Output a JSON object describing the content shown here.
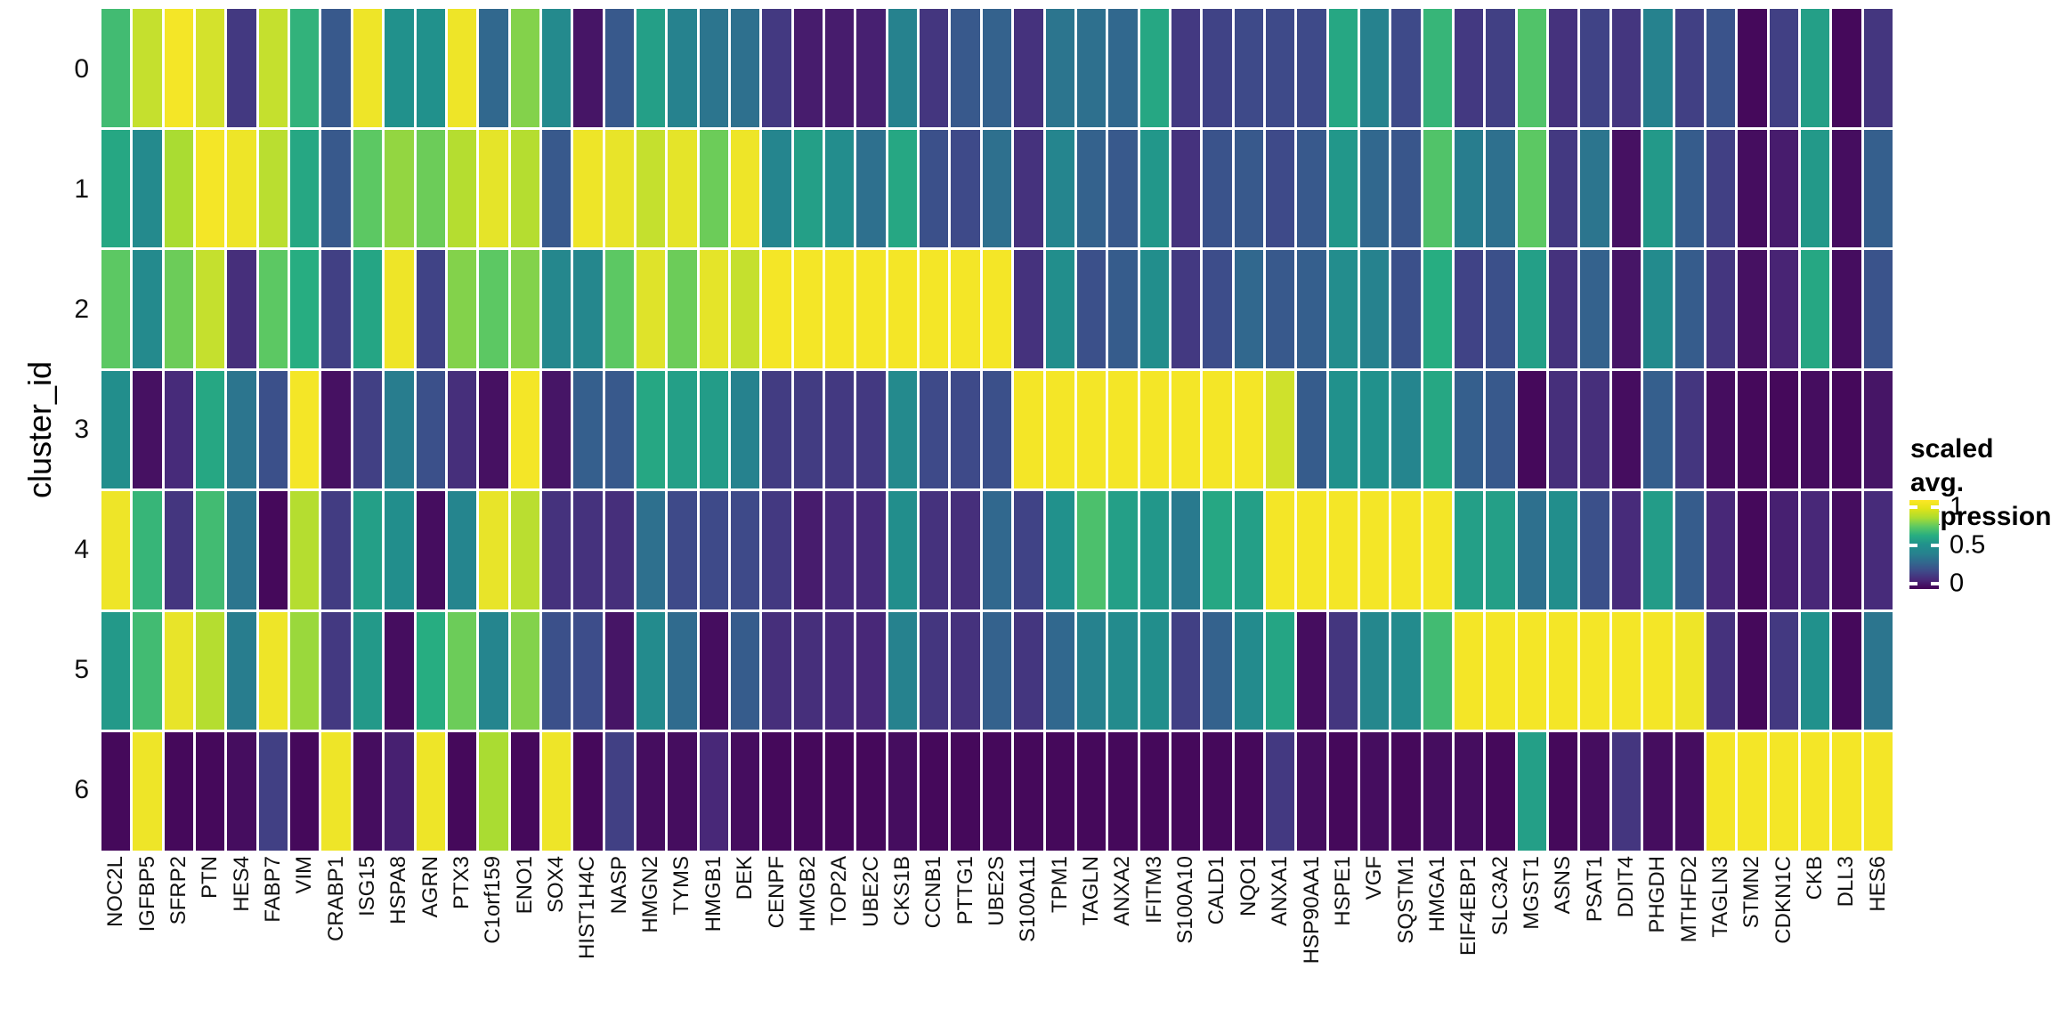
{
  "figure": {
    "y_axis_title": "cluster_id",
    "row_labels": [
      "0",
      "1",
      "2",
      "3",
      "4",
      "5",
      "6"
    ],
    "legend": {
      "title_line1": "scaled avg.",
      "title_line2": "expression",
      "tick_labels": [
        "1",
        "0.5",
        "0"
      ],
      "tick_positions_pct": [
        8,
        51,
        94
      ]
    },
    "colors": {
      "background": "#ffffff",
      "grid_gap": "#ffffff",
      "viridis_min": "#440154",
      "viridis_mid": "#21918c",
      "viridis_max": "#fde725"
    }
  },
  "chart_data": {
    "type": "heatmap",
    "title": "",
    "xlabel": "",
    "ylabel": "cluster_id",
    "legend_title": "scaled avg. expression",
    "colormap": "viridis",
    "value_range": [
      0,
      1
    ],
    "legend_ticks": [
      0,
      0.5,
      1
    ],
    "categories": [
      "NOC2L",
      "IGFBP5",
      "SFRP2",
      "PTN",
      "HES4",
      "FABP7",
      "VIM",
      "CRABP1",
      "ISG15",
      "HSPA8",
      "AGRN",
      "PTX3",
      "C1orf159",
      "ENO1",
      "SOX4",
      "HIST1H4C",
      "NASP",
      "HMGN2",
      "TYMS",
      "HMGB1",
      "DEK",
      "CENPF",
      "HMGB2",
      "TOP2A",
      "UBE2C",
      "CKS1B",
      "CCNB1",
      "PTTG1",
      "UBE2S",
      "S100A11",
      "TPM1",
      "TAGLN",
      "ANXA2",
      "IFITM3",
      "S100A10",
      "CALD1",
      "NQO1",
      "ANXA1",
      "HSP90AA1",
      "HSPE1",
      "VGF",
      "SQSTM1",
      "HMGA1",
      "EIF4EBP1",
      "SLC3A2",
      "MGST1",
      "ASNS",
      "PSAT1",
      "DDIT4",
      "PHGDH",
      "MTHFD2",
      "TAGLN3",
      "STMN2",
      "CDKN1C",
      "CKB",
      "DLL3",
      "HES6"
    ],
    "series": [
      {
        "name": "0",
        "values": [
          0.65,
          0.85,
          0.97,
          0.88,
          0.15,
          0.85,
          0.62,
          0.25,
          0.95,
          0.5,
          0.5,
          0.95,
          0.3,
          0.75,
          0.45,
          0.05,
          0.25,
          0.55,
          0.4,
          0.35,
          0.33,
          0.15,
          0.07,
          0.07,
          0.08,
          0.4,
          0.14,
          0.25,
          0.28,
          0.13,
          0.35,
          0.33,
          0.3,
          0.58,
          0.15,
          0.18,
          0.2,
          0.2,
          0.2,
          0.58,
          0.4,
          0.2,
          0.63,
          0.15,
          0.17,
          0.68,
          0.13,
          0.18,
          0.14,
          0.4,
          0.17,
          0.23,
          0.02,
          0.17,
          0.55,
          0.02,
          0.14
        ]
      },
      {
        "name": "1",
        "values": [
          0.58,
          0.45,
          0.8,
          0.97,
          0.95,
          0.83,
          0.58,
          0.25,
          0.7,
          0.77,
          0.72,
          0.82,
          0.92,
          0.82,
          0.25,
          0.95,
          0.93,
          0.85,
          0.92,
          0.72,
          0.95,
          0.42,
          0.55,
          0.47,
          0.33,
          0.58,
          0.22,
          0.2,
          0.33,
          0.13,
          0.42,
          0.28,
          0.25,
          0.52,
          0.13,
          0.23,
          0.25,
          0.2,
          0.25,
          0.52,
          0.3,
          0.24,
          0.68,
          0.38,
          0.33,
          0.7,
          0.15,
          0.35,
          0.04,
          0.53,
          0.26,
          0.17,
          0.03,
          0.07,
          0.53,
          0.03,
          0.27
        ]
      },
      {
        "name": "2",
        "values": [
          0.7,
          0.45,
          0.72,
          0.85,
          0.12,
          0.7,
          0.6,
          0.17,
          0.57,
          0.95,
          0.18,
          0.75,
          0.7,
          0.75,
          0.43,
          0.43,
          0.7,
          0.9,
          0.72,
          0.92,
          0.85,
          0.97,
          0.97,
          0.97,
          0.97,
          0.97,
          0.97,
          0.97,
          0.97,
          0.13,
          0.48,
          0.22,
          0.26,
          0.48,
          0.15,
          0.21,
          0.3,
          0.25,
          0.27,
          0.47,
          0.4,
          0.22,
          0.6,
          0.18,
          0.22,
          0.55,
          0.13,
          0.28,
          0.05,
          0.46,
          0.26,
          0.14,
          0.04,
          0.09,
          0.58,
          0.03,
          0.23
        ]
      },
      {
        "name": "3",
        "values": [
          0.48,
          0.04,
          0.11,
          0.58,
          0.35,
          0.22,
          0.97,
          0.04,
          0.17,
          0.38,
          0.22,
          0.12,
          0.04,
          0.97,
          0.05,
          0.27,
          0.25,
          0.58,
          0.55,
          0.54,
          0.4,
          0.16,
          0.16,
          0.15,
          0.15,
          0.45,
          0.2,
          0.2,
          0.22,
          0.97,
          0.97,
          0.97,
          0.97,
          0.97,
          0.97,
          0.97,
          0.97,
          0.87,
          0.26,
          0.5,
          0.5,
          0.42,
          0.58,
          0.27,
          0.25,
          0.02,
          0.12,
          0.12,
          0.03,
          0.27,
          0.14,
          0.03,
          0.02,
          0.02,
          0.03,
          0.02,
          0.05
        ]
      },
      {
        "name": "4",
        "values": [
          0.95,
          0.63,
          0.14,
          0.65,
          0.35,
          0.02,
          0.82,
          0.16,
          0.55,
          0.48,
          0.03,
          0.42,
          0.93,
          0.83,
          0.13,
          0.13,
          0.12,
          0.33,
          0.2,
          0.2,
          0.2,
          0.15,
          0.07,
          0.11,
          0.11,
          0.48,
          0.13,
          0.12,
          0.3,
          0.18,
          0.5,
          0.67,
          0.55,
          0.52,
          0.37,
          0.58,
          0.55,
          0.97,
          0.97,
          0.97,
          0.97,
          0.97,
          0.97,
          0.55,
          0.55,
          0.33,
          0.48,
          0.22,
          0.11,
          0.54,
          0.26,
          0.1,
          0.02,
          0.08,
          0.1,
          0.03,
          0.11
        ]
      },
      {
        "name": "5",
        "values": [
          0.53,
          0.65,
          0.93,
          0.82,
          0.38,
          0.95,
          0.78,
          0.15,
          0.53,
          0.03,
          0.6,
          0.72,
          0.42,
          0.75,
          0.22,
          0.21,
          0.05,
          0.46,
          0.31,
          0.03,
          0.26,
          0.12,
          0.12,
          0.11,
          0.1,
          0.4,
          0.14,
          0.13,
          0.28,
          0.14,
          0.3,
          0.4,
          0.46,
          0.48,
          0.17,
          0.28,
          0.46,
          0.57,
          0.03,
          0.14,
          0.43,
          0.46,
          0.65,
          0.97,
          0.97,
          0.97,
          0.97,
          0.97,
          0.97,
          0.97,
          0.95,
          0.13,
          0.02,
          0.15,
          0.5,
          0.02,
          0.35
        ]
      },
      {
        "name": "6",
        "values": [
          0.02,
          0.95,
          0.02,
          0.02,
          0.03,
          0.17,
          0.02,
          0.95,
          0.03,
          0.08,
          0.95,
          0.02,
          0.8,
          0.02,
          0.95,
          0.02,
          0.17,
          0.03,
          0.03,
          0.1,
          0.03,
          0.02,
          0.02,
          0.02,
          0.02,
          0.03,
          0.02,
          0.02,
          0.02,
          0.02,
          0.02,
          0.02,
          0.02,
          0.02,
          0.02,
          0.02,
          0.02,
          0.15,
          0.03,
          0.02,
          0.03,
          0.02,
          0.03,
          0.03,
          0.02,
          0.55,
          0.02,
          0.03,
          0.14,
          0.03,
          0.03,
          0.97,
          0.97,
          0.97,
          0.97,
          0.97,
          0.97
        ]
      }
    ]
  }
}
